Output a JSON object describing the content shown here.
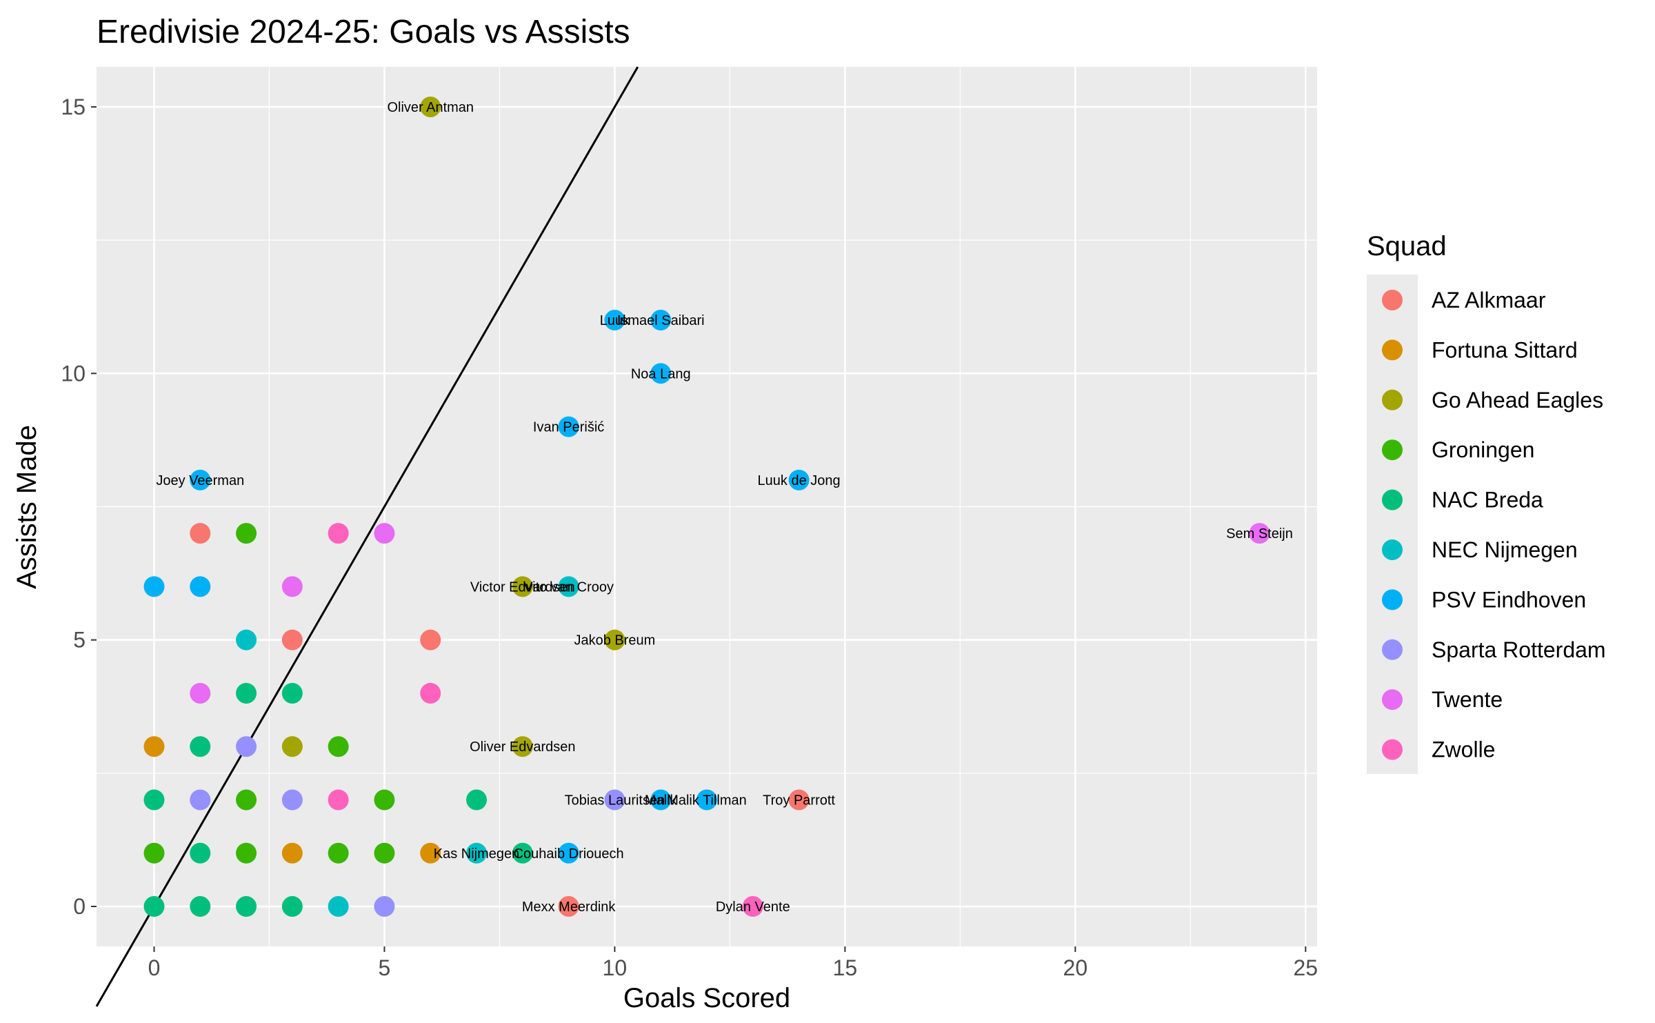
{
  "chart_data": {
    "type": "scatter",
    "title": "Eredivisie 2024-25: Goals vs Assists",
    "xlabel": "Goals Scored",
    "ylabel": "Assists Made",
    "xlim": [
      -1.25,
      25.25
    ],
    "ylim": [
      -0.75,
      15.75
    ],
    "x_ticks": [
      0,
      5,
      10,
      15,
      20,
      25
    ],
    "y_ticks": [
      0,
      5,
      10,
      15
    ],
    "grid": true,
    "legend_title": "Squad",
    "legend_position": "right",
    "reference_line": {
      "slope": 1.5,
      "intercept": 0
    },
    "series": [
      {
        "name": "AZ Alkmaar",
        "color": "#F8766D",
        "points": [
          {
            "x": 1,
            "y": 7
          },
          {
            "x": 3,
            "y": 5
          },
          {
            "x": 6,
            "y": 5
          },
          {
            "x": 9,
            "y": 0,
            "label": "Mexx Meerdink"
          },
          {
            "x": 14,
            "y": 2,
            "label": "Troy Parrott"
          }
        ]
      },
      {
        "name": "Fortuna Sittard",
        "color": "#D89000",
        "points": [
          {
            "x": 0,
            "y": 3
          },
          {
            "x": 3,
            "y": 1
          },
          {
            "x": 6,
            "y": 1
          }
        ]
      },
      {
        "name": "Go Ahead Eagles",
        "color": "#A3A500",
        "points": [
          {
            "x": 6,
            "y": 15,
            "label": "Oliver Antman"
          },
          {
            "x": 8,
            "y": 6,
            "label": "Victor Edvardsen"
          },
          {
            "x": 10,
            "y": 5,
            "label": "Jakob Breum"
          },
          {
            "x": 8,
            "y": 3,
            "label": "Oliver Edvardsen"
          },
          {
            "x": 3,
            "y": 3
          }
        ]
      },
      {
        "name": "Groningen",
        "color": "#39B600",
        "points": [
          {
            "x": 2,
            "y": 7
          },
          {
            "x": 4,
            "y": 3
          },
          {
            "x": 2,
            "y": 2
          },
          {
            "x": 5,
            "y": 2
          },
          {
            "x": 0,
            "y": 1
          },
          {
            "x": 2,
            "y": 1
          },
          {
            "x": 4,
            "y": 1
          },
          {
            "x": 5,
            "y": 1
          }
        ]
      },
      {
        "name": "NAC Breda",
        "color": "#00BF7D",
        "points": [
          {
            "x": 2,
            "y": 4
          },
          {
            "x": 3,
            "y": 4
          },
          {
            "x": 1,
            "y": 3
          },
          {
            "x": 0,
            "y": 2
          },
          {
            "x": 7,
            "y": 2
          },
          {
            "x": 1,
            "y": 1
          },
          {
            "x": 8,
            "y": 1
          },
          {
            "x": 0,
            "y": 0
          },
          {
            "x": 1,
            "y": 0
          },
          {
            "x": 2,
            "y": 0
          },
          {
            "x": 3,
            "y": 0
          }
        ]
      },
      {
        "name": "NEC Nijmegen",
        "color": "#00BFC4",
        "points": [
          {
            "x": 2,
            "y": 5
          },
          {
            "x": 9,
            "y": 6,
            "label": "Vito van Crooy"
          },
          {
            "x": 7,
            "y": 1,
            "label": "Kas Nijmegen"
          },
          {
            "x": 4,
            "y": 0
          }
        ]
      },
      {
        "name": "PSV Eindhoven",
        "color": "#00B0F6",
        "points": [
          {
            "x": 10,
            "y": 11,
            "label": "Luuk"
          },
          {
            "x": 11,
            "y": 11,
            "label": "Ismael Saibari"
          },
          {
            "x": 11,
            "y": 10,
            "label": "Noa Lang"
          },
          {
            "x": 9,
            "y": 9,
            "label": "Ivan Perišić"
          },
          {
            "x": 1,
            "y": 8,
            "label": "Joey Veerman"
          },
          {
            "x": 14,
            "y": 8,
            "label": "Luuk de Jong"
          },
          {
            "x": 0,
            "y": 6
          },
          {
            "x": 1,
            "y": 6
          },
          {
            "x": 11,
            "y": 2,
            "label": "Malik"
          },
          {
            "x": 12,
            "y": 2,
            "label": "Malik Tillman"
          },
          {
            "x": 9,
            "y": 1,
            "label": "Couhaib Driouech"
          }
        ]
      },
      {
        "name": "Sparta Rotterdam",
        "color": "#9590FF",
        "points": [
          {
            "x": 2,
            "y": 3
          },
          {
            "x": 1,
            "y": 2
          },
          {
            "x": 3,
            "y": 2
          },
          {
            "x": 10,
            "y": 2,
            "label": "Tobias Lauritsen"
          },
          {
            "x": 5,
            "y": 0
          }
        ]
      },
      {
        "name": "Twente",
        "color": "#E76BF3",
        "points": [
          {
            "x": 24,
            "y": 7,
            "label": "Sem Steijn"
          },
          {
            "x": 5,
            "y": 7
          },
          {
            "x": 3,
            "y": 6
          },
          {
            "x": 1,
            "y": 4
          }
        ]
      },
      {
        "name": "Zwolle",
        "color": "#FF62BC",
        "points": [
          {
            "x": 4,
            "y": 7
          },
          {
            "x": 6,
            "y": 4
          },
          {
            "x": 4,
            "y": 2
          },
          {
            "x": 13,
            "y": 0,
            "label": "Dylan Vente"
          }
        ]
      }
    ]
  }
}
